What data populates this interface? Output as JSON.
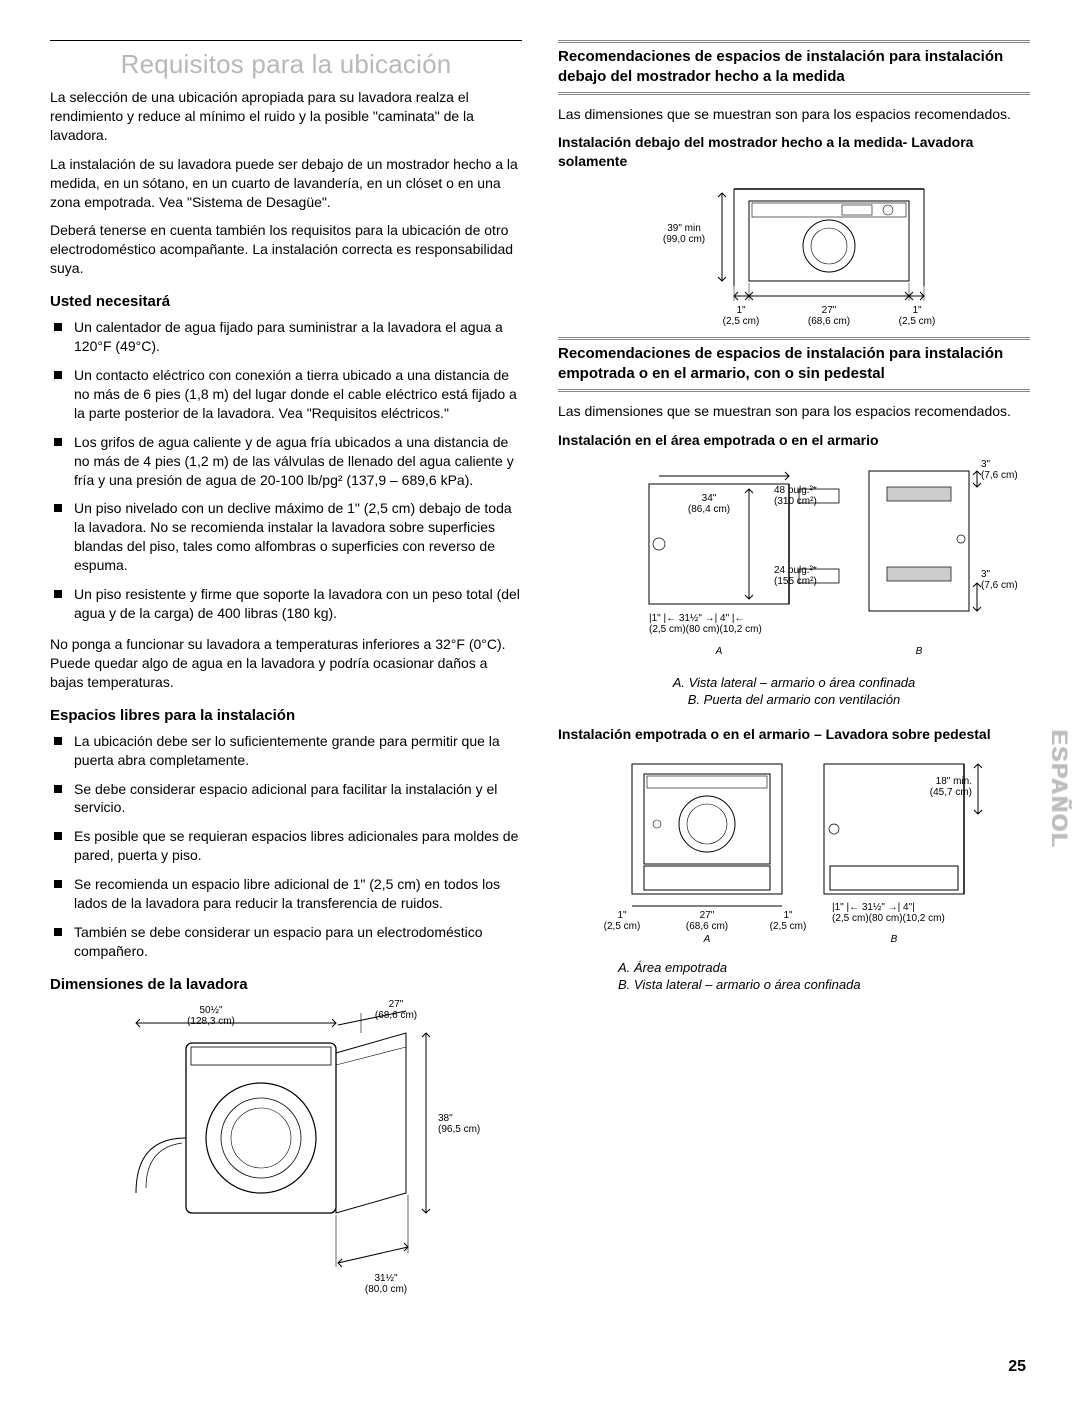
{
  "page_number": "25",
  "side_label": "ESPAÑOL",
  "left": {
    "title": "Requisitos para la ubicación",
    "intro1": "La selección de una ubicación apropiada para su lavadora realza el rendimiento y reduce al mínimo el ruido y la posible \"caminata\" de la lavadora.",
    "intro2": "La instalación de su lavadora puede ser debajo de un mostrador hecho a la medida, en un sótano, en un cuarto de lavandería, en un clóset o en una zona empotrada. Vea \"Sistema de Desagüe\".",
    "intro3": "Deberá tenerse en cuenta también los requisitos para la ubicación de otro electrodoméstico acompañante. La instalación correcta es responsabilidad suya.",
    "need_h": "Usted necesitará",
    "need": [
      "Un calentador de agua fijado para suministrar a la lavadora el agua a 120°F (49°C).",
      "Un contacto eléctrico con conexión a tierra ubicado a una distancia de no más de 6 pies (1,8 m) del lugar donde el cable eléctrico está fijado a la parte posterior de la lavadora. Vea \"Requisitos eléctricos.\"",
      "Los grifos de agua caliente y de agua fría ubicados a una distancia de no más de 4 pies (1,2 m) de las válvulas de llenado del agua caliente y fría y una presión de agua de 20-100 lb/pg² (137,9 – 689,6 kPa).",
      "Un piso nivelado con un declive máximo de 1\" (2,5 cm) debajo de toda la lavadora. No se recomienda instalar la lavadora sobre superficies blandas del piso, tales como alfombras o superficies con reverso de espuma.",
      "Un piso resistente y firme que soporte la lavadora con un peso total (del agua y de la carga) de 400 libras (180 kg)."
    ],
    "no_op": "No ponga a funcionar su lavadora a temperaturas inferiores a 32°F (0°C). Puede quedar algo de agua en la lavadora y podría ocasionar daños a bajas temperaturas.",
    "clearance_h": "Espacios libres para la instalación",
    "clearance": [
      "La ubicación debe ser lo suficientemente grande para permitir que la puerta abra completamente.",
      "Se debe considerar espacio adicional para facilitar la instalación y el servicio.",
      "Es posible que se requieran espacios libres adicionales para moldes de pared, puerta y piso.",
      "Se recomienda un espacio libre adicional de 1\" (2,5 cm) en todos los lados de la lavadora para reducir la transferencia de ruidos.",
      "También se debe considerar un espacio para un electrodoméstico compañero."
    ],
    "dims_h": "Dimensiones de la lavadora",
    "dims": {
      "width_open": "50½\"\n(128,3 cm)",
      "depth": "27\"\n(68,6 cm)",
      "height": "38\"\n(96,5 cm)",
      "depth2": "31½\"\n(80,0 cm)"
    }
  },
  "right": {
    "box1_h": "Recomendaciones de espacios de instalación para instalación debajo del mostrador hecho a la medida",
    "box1_p": "Las dimensiones que se muestran son para los espacios recomendados.",
    "box1_sub": "Instalación debajo del mostrador hecho a la medida- Lavadora solamente",
    "fig1": {
      "h": "39\" min\n(99,0 cm)",
      "l": "1\"\n(2,5 cm)",
      "w": "27\"\n(68,6 cm)",
      "r": "1\"\n(2,5 cm)"
    },
    "box2_h": "Recomendaciones de espacios de instalación para instalación empotrada o en el armario, con o sin pedestal",
    "box2_p": "Las dimensiones que se muestran son para los espacios recomendados.",
    "box2_sub": "Instalación en el área empotrada o en el armario",
    "fig2": {
      "h": "34\"\n(86,4 cm)",
      "vent1": "48 pulg.²*\n(310 cm²)",
      "vent2": "24 pulg.²*\n(155 cm²)",
      "t3": "3\"\n(7,6 cm)",
      "b3": "3\"\n(7,6 cm)",
      "dims_b": "|1\" |← 31½\" →| 4\" |←\n(2,5 cm)(80 cm)(10,2 cm)",
      "A": "A",
      "B": "B",
      "cap": "A. Vista lateral – armario o área confinada\nB. Puerta del armario con ventilación"
    },
    "box3_sub": "Instalación empotrada o en el armario – Lavadora sobre pedestal",
    "fig3": {
      "h": "18\" min.\n(45,7 cm)",
      "l": "1\"\n(2,5 cm)",
      "w": "27\"\n(68,6 cm)",
      "r": "1\"\n(2,5 cm)",
      "dims_b": "|1\" |← 31½\" →| 4\"|\n(2,5 cm)(80 cm)(10,2 cm)",
      "A": "A",
      "B": "B",
      "cap": "A. Área empotrada\nB. Vista lateral – armario o área confinada"
    }
  }
}
